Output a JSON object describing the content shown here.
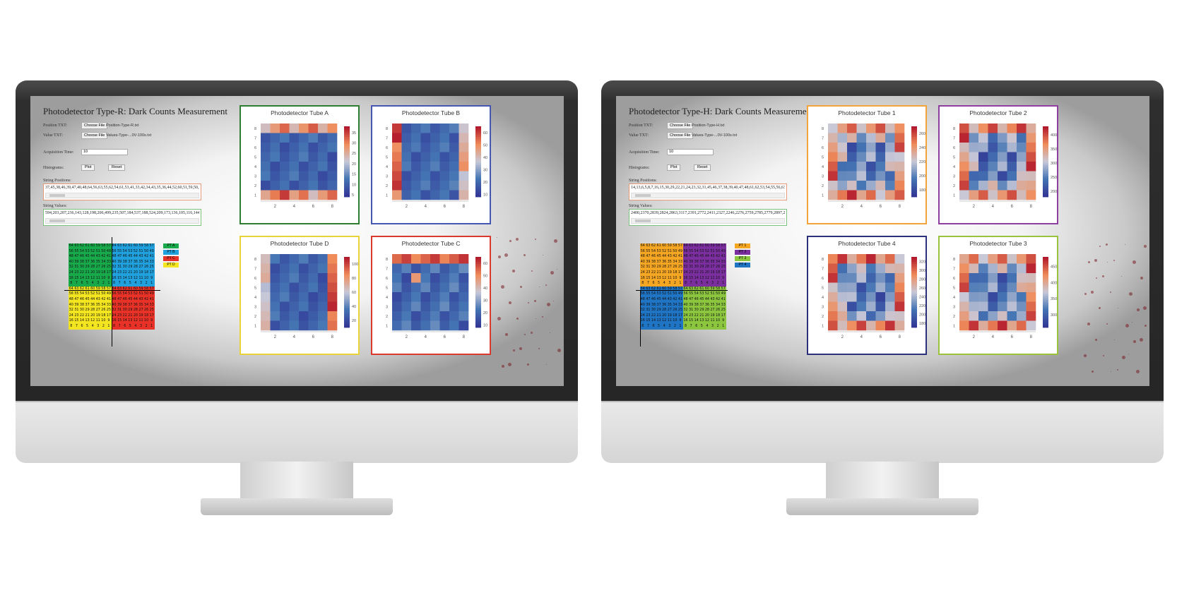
{
  "left": {
    "title": "Photodetector Type-R: Dark Counts Measurement",
    "position_label": "Position TXT:",
    "value_label": "Value TXT:",
    "choose_file": "Choose File",
    "position_file": "Position-Type-R.txt",
    "value_file": "Values-Type-...0V-100s.txt",
    "acq_label": "Acquisition Time:",
    "acq_value": "10",
    "hist_label": "Histograms:",
    "plot": "Plot",
    "reset": "Reset",
    "string_positions_label": "String Positions:",
    "string_positions": "37,45,38,46,39,47,40,48,64,56,63,55,62,54,61,53,41,33,42,34,43,35,36,44,52,60,51,59,50,58,",
    "string_values_label": "String Values:",
    "string_values": "594,203,207,236,143,128,198,206,499,235,507,184,537,188,524,209,173,136,105,116,144,1",
    "legend": [
      {
        "label": "PT A",
        "color": "#18a94a"
      },
      {
        "label": "PT B",
        "color": "#20a0dc"
      },
      {
        "label": "PT C",
        "color": "#e83228"
      },
      {
        "label": "PT D",
        "color": "#f3e51f"
      }
    ],
    "quadrants": {
      "tl": "#18a94a",
      "tr": "#20a0dc",
      "bl": "#f3e51f",
      "br": "#e83228"
    },
    "panels": [
      {
        "title": "Photodetector Tube A",
        "border": "#2e7d32",
        "ticks": [
          "35",
          "30",
          "25",
          "20",
          "15",
          "10",
          "5"
        ],
        "range": [
          4,
          38
        ]
      },
      {
        "title": "Photodetector Tube B",
        "border": "#4457b5",
        "ticks": [
          "60",
          "50",
          "40",
          "30",
          "20",
          "10"
        ],
        "range": [
          8,
          65
        ]
      },
      {
        "title": "Photodetector Tube D",
        "border": "#e8d43a",
        "ticks": [
          "100",
          "80",
          "60",
          "40",
          "20"
        ],
        "range": [
          10,
          110
        ]
      },
      {
        "title": "Photodetector Tube C",
        "border": "#d93a2d",
        "ticks": [
          "60",
          "50",
          "40",
          "30",
          "20",
          "10"
        ],
        "range": [
          8,
          65
        ]
      }
    ]
  },
  "right": {
    "title": "Photodetector Type-H: Dark Counts Measurement",
    "position_label": "Position TXT:",
    "value_label": "Value TXT:",
    "choose_file": "Choose File",
    "position_file": "Position-Type-H.txt",
    "value_file": "Values-Type-...0V-100s.txt",
    "acq_label": "Acquisition Time:",
    "acq_value": "10",
    "hist_label": "Histograms:",
    "plot": "Plot",
    "reset": "Reset",
    "string_positions_label": "String Positions:",
    "string_positions": "14,13,6,5,8,7,16,15,30,29,22,21,24,23,32,31,45,46,37,38,39,40,47,48,61,62,53,54,55,56,63,6",
    "string_values_label": "String Values:",
    "string_values": "2400,2370,2839,2824,2863,3117,2391,2772,2411,2327,2246,2276,2759,2785,2779,2897,265",
    "legend": [
      {
        "label": "PT 1",
        "color": "#f5a623"
      },
      {
        "label": "PT 2",
        "color": "#7b2f9e"
      },
      {
        "label": "PT 3",
        "color": "#8cc63f"
      },
      {
        "label": "PT 4",
        "color": "#1f74c4"
      }
    ],
    "quadrants": {
      "tl": "#f5a623",
      "tr": "#7b2f9e",
      "bl": "#1f74c4",
      "br": "#8cc63f"
    },
    "panels": [
      {
        "title": "Photodetector Tube 1",
        "border": "#f2a33a",
        "ticks": [
          "260",
          "240",
          "220",
          "200",
          "180"
        ],
        "range": [
          170,
          270
        ]
      },
      {
        "title": "Photodetector Tube 2",
        "border": "#8e3fa0",
        "ticks": [
          "400",
          "350",
          "300",
          "250",
          "200"
        ],
        "range": [
          180,
          430
        ]
      },
      {
        "title": "Photodetector Tube 4",
        "border": "#2c2f7a",
        "ticks": [
          "320",
          "300",
          "280",
          "260",
          "240",
          "220",
          "200",
          "180"
        ],
        "range": [
          170,
          330
        ]
      },
      {
        "title": "Photodetector Tube 3",
        "border": "#9bc23c",
        "ticks": [
          "450",
          "400",
          "350",
          "300"
        ],
        "range": [
          260,
          480
        ]
      }
    ]
  },
  "axis": {
    "x_ticks": [
      "2",
      "4",
      "6",
      "8"
    ],
    "y_ticks": [
      "8",
      "7",
      "6",
      "5",
      "4",
      "3",
      "2",
      "1"
    ]
  }
}
